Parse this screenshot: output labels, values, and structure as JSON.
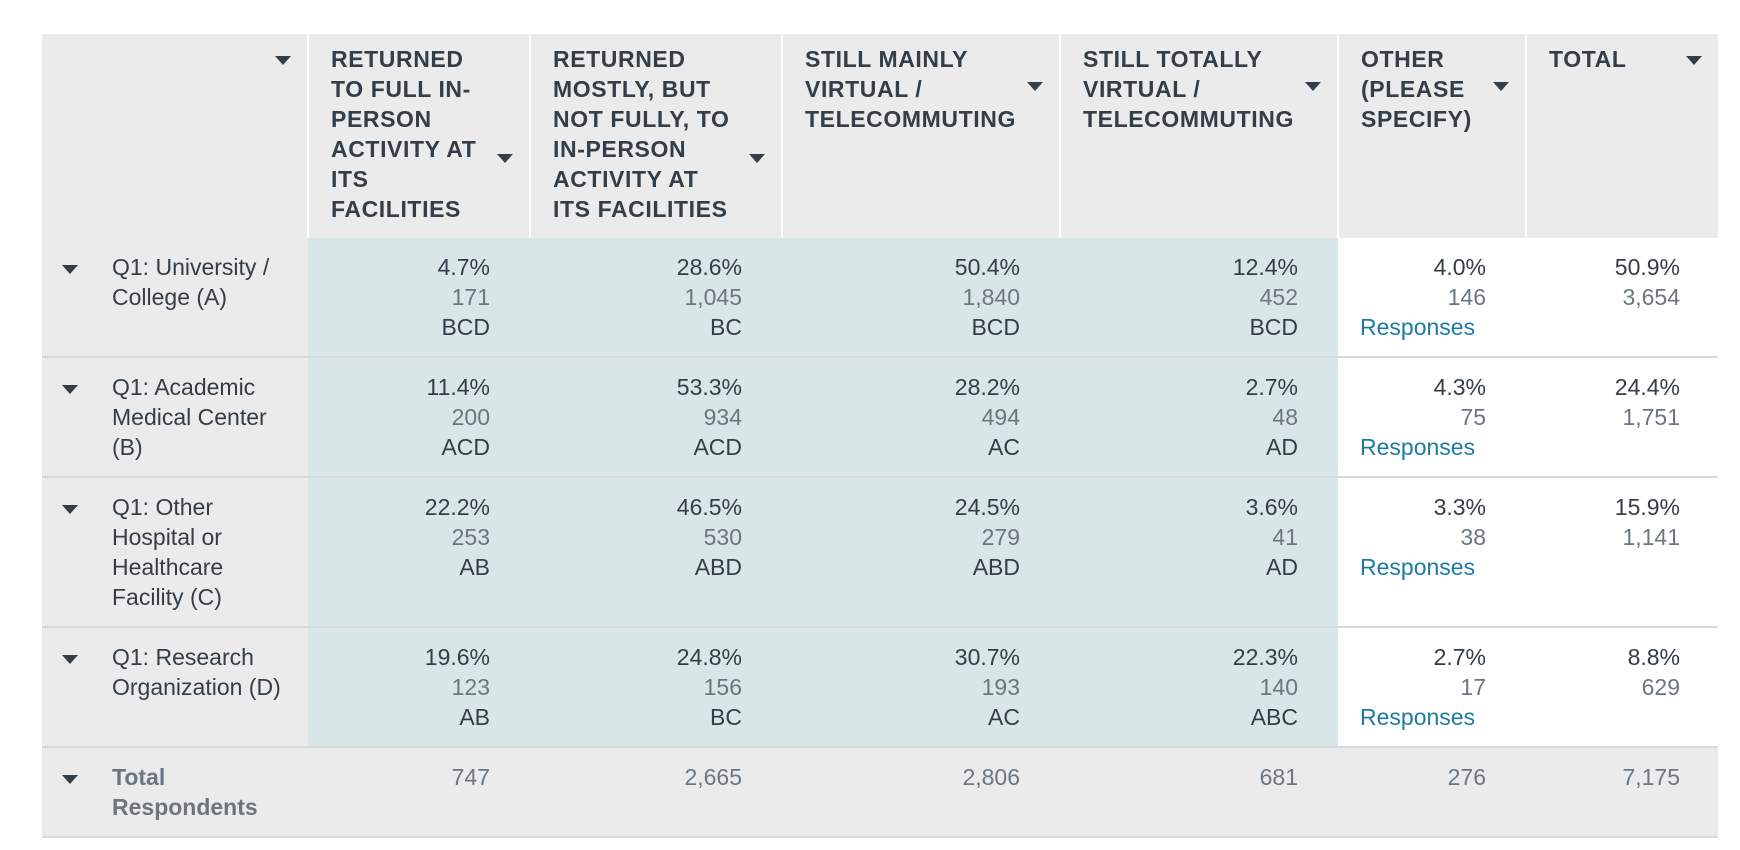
{
  "columns": [
    {
      "label": "RETURNED TO FULL IN-PERSON ACTIVITY AT ITS FACILITIES"
    },
    {
      "label": "RETURNED MOSTLY, BUT NOT FULLY, TO IN-PERSON ACTIVITY AT ITS FACILITIES"
    },
    {
      "label": "STILL MAINLY VIRTUAL / TELECOMMUTING"
    },
    {
      "label": "STILL TOTALLY VIRTUAL / TELECOMMUTING"
    },
    {
      "label": "OTHER (PLEASE SPECIFY)"
    },
    {
      "label": "TOTAL"
    }
  ],
  "rows": [
    {
      "label": "Q1: University / College (A)",
      "cells": [
        {
          "pct": "4.7%",
          "count": "171",
          "sig": "BCD"
        },
        {
          "pct": "28.6%",
          "count": "1,045",
          "sig": "BC"
        },
        {
          "pct": "50.4%",
          "count": "1,840",
          "sig": "BCD"
        },
        {
          "pct": "12.4%",
          "count": "452",
          "sig": "BCD"
        }
      ],
      "other": {
        "pct": "4.0%",
        "count": "146",
        "link": "Responses"
      },
      "total": {
        "pct": "50.9%",
        "count": "3,654"
      }
    },
    {
      "label": "Q1: Academic Medical Center (B)",
      "cells": [
        {
          "pct": "11.4%",
          "count": "200",
          "sig": "ACD"
        },
        {
          "pct": "53.3%",
          "count": "934",
          "sig": "ACD"
        },
        {
          "pct": "28.2%",
          "count": "494",
          "sig": "AC"
        },
        {
          "pct": "2.7%",
          "count": "48",
          "sig": "AD"
        }
      ],
      "other": {
        "pct": "4.3%",
        "count": "75",
        "link": "Responses"
      },
      "total": {
        "pct": "24.4%",
        "count": "1,751"
      }
    },
    {
      "label": "Q1: Other Hospital or Healthcare Facility (C)",
      "cells": [
        {
          "pct": "22.2%",
          "count": "253",
          "sig": "AB"
        },
        {
          "pct": "46.5%",
          "count": "530",
          "sig": "ABD"
        },
        {
          "pct": "24.5%",
          "count": "279",
          "sig": "ABD"
        },
        {
          "pct": "3.6%",
          "count": "41",
          "sig": "AD"
        }
      ],
      "other": {
        "pct": "3.3%",
        "count": "38",
        "link": "Responses"
      },
      "total": {
        "pct": "15.9%",
        "count": "1,141"
      }
    },
    {
      "label": "Q1: Research Organization (D)",
      "cells": [
        {
          "pct": "19.6%",
          "count": "123",
          "sig": "AB"
        },
        {
          "pct": "24.8%",
          "count": "156",
          "sig": "BC"
        },
        {
          "pct": "30.7%",
          "count": "193",
          "sig": "AC"
        },
        {
          "pct": "22.3%",
          "count": "140",
          "sig": "ABC"
        }
      ],
      "other": {
        "pct": "2.7%",
        "count": "17",
        "link": "Responses"
      },
      "total": {
        "pct": "8.8%",
        "count": "629"
      }
    }
  ],
  "totals": {
    "label": "Total Respondents",
    "values": [
      "747",
      "2,665",
      "2,806",
      "681",
      "276",
      "7,175"
    ]
  },
  "colors": {
    "header_bg": "#ebebeb",
    "highlight_bg": "#d9e6e8",
    "link": "#1e7aa3",
    "text": "#333e48"
  }
}
